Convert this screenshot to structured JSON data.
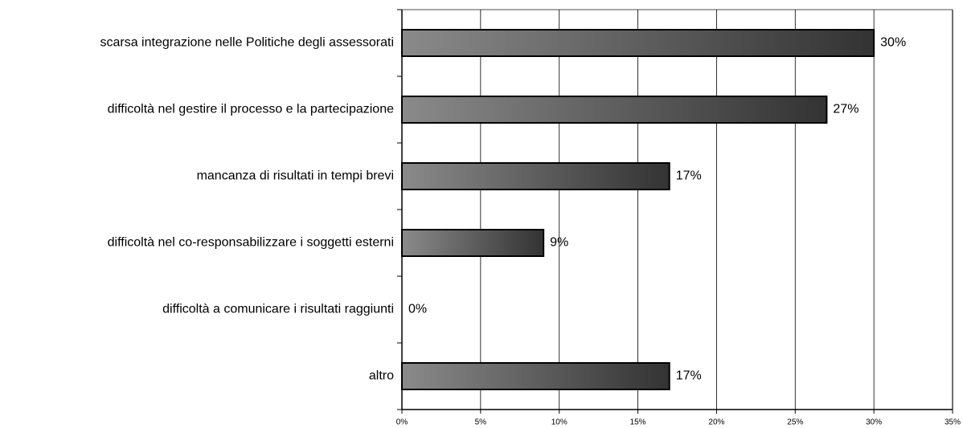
{
  "chart_data": {
    "type": "bar",
    "orientation": "horizontal",
    "categories": [
      "scarsa integrazione nelle Politiche degli assessorati",
      "difficoltà nel gestire il processo e la partecipazione",
      "mancanza di risultati in tempi brevi",
      "difficoltà nel co-responsabilizzare i soggetti esterni",
      "difficoltà a comunicare i risultati raggiunti",
      "altro"
    ],
    "values": [
      30,
      27,
      17,
      9,
      0,
      17
    ],
    "value_labels": [
      "30%",
      "27%",
      "17%",
      "9%",
      "0%",
      "17%"
    ],
    "color": "#555555",
    "xlim": [
      0,
      35
    ],
    "xticks": [
      {
        "value": 0,
        "label": "0%"
      },
      {
        "value": 5,
        "label": "5%"
      },
      {
        "value": 10,
        "label": "10%"
      },
      {
        "value": 15,
        "label": "15%"
      },
      {
        "value": 20,
        "label": "20%"
      },
      {
        "value": 25,
        "label": "25%"
      },
      {
        "value": 30,
        "label": "30%"
      },
      {
        "value": 35,
        "label": "35%"
      }
    ],
    "grid": true
  }
}
